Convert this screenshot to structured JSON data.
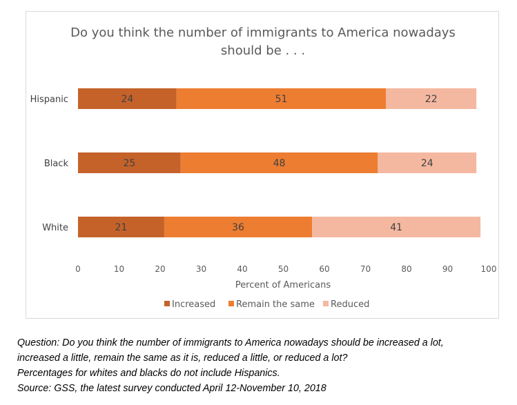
{
  "chart_data": {
    "type": "bar",
    "orientation": "horizontal",
    "stacked": true,
    "title_lines": [
      "Do you think the number of immigrants to America nowadays",
      "should be . . ."
    ],
    "categories": [
      "Hispanic",
      "Black",
      "White"
    ],
    "series": [
      {
        "name": "Increased",
        "values": [
          24,
          25,
          21
        ],
        "color": "#C5622A"
      },
      {
        "name": "Remain the same",
        "values": [
          51,
          48,
          36
        ],
        "color": "#ED7D31"
      },
      {
        "name": "Reduced",
        "values": [
          22,
          24,
          41
        ],
        "color": "#F4B8A0"
      }
    ],
    "xlabel": "Percent of Americans",
    "xlim": [
      0,
      100
    ],
    "xticks": [
      0,
      10,
      20,
      30,
      40,
      50,
      60,
      70,
      80,
      90,
      100
    ],
    "grid": false,
    "legend_position": "bottom"
  },
  "footnote": {
    "lines": [
      "Question: Do you think the number of immigrants to America nowadays should be increased a lot,",
      "increased a little, remain the same as it is, reduced a little, or reduced a lot?",
      "Percentages for whites and blacks do not include Hispanics.",
      "Source: GSS, the latest survey conducted April 12-November 10, 2018"
    ]
  }
}
